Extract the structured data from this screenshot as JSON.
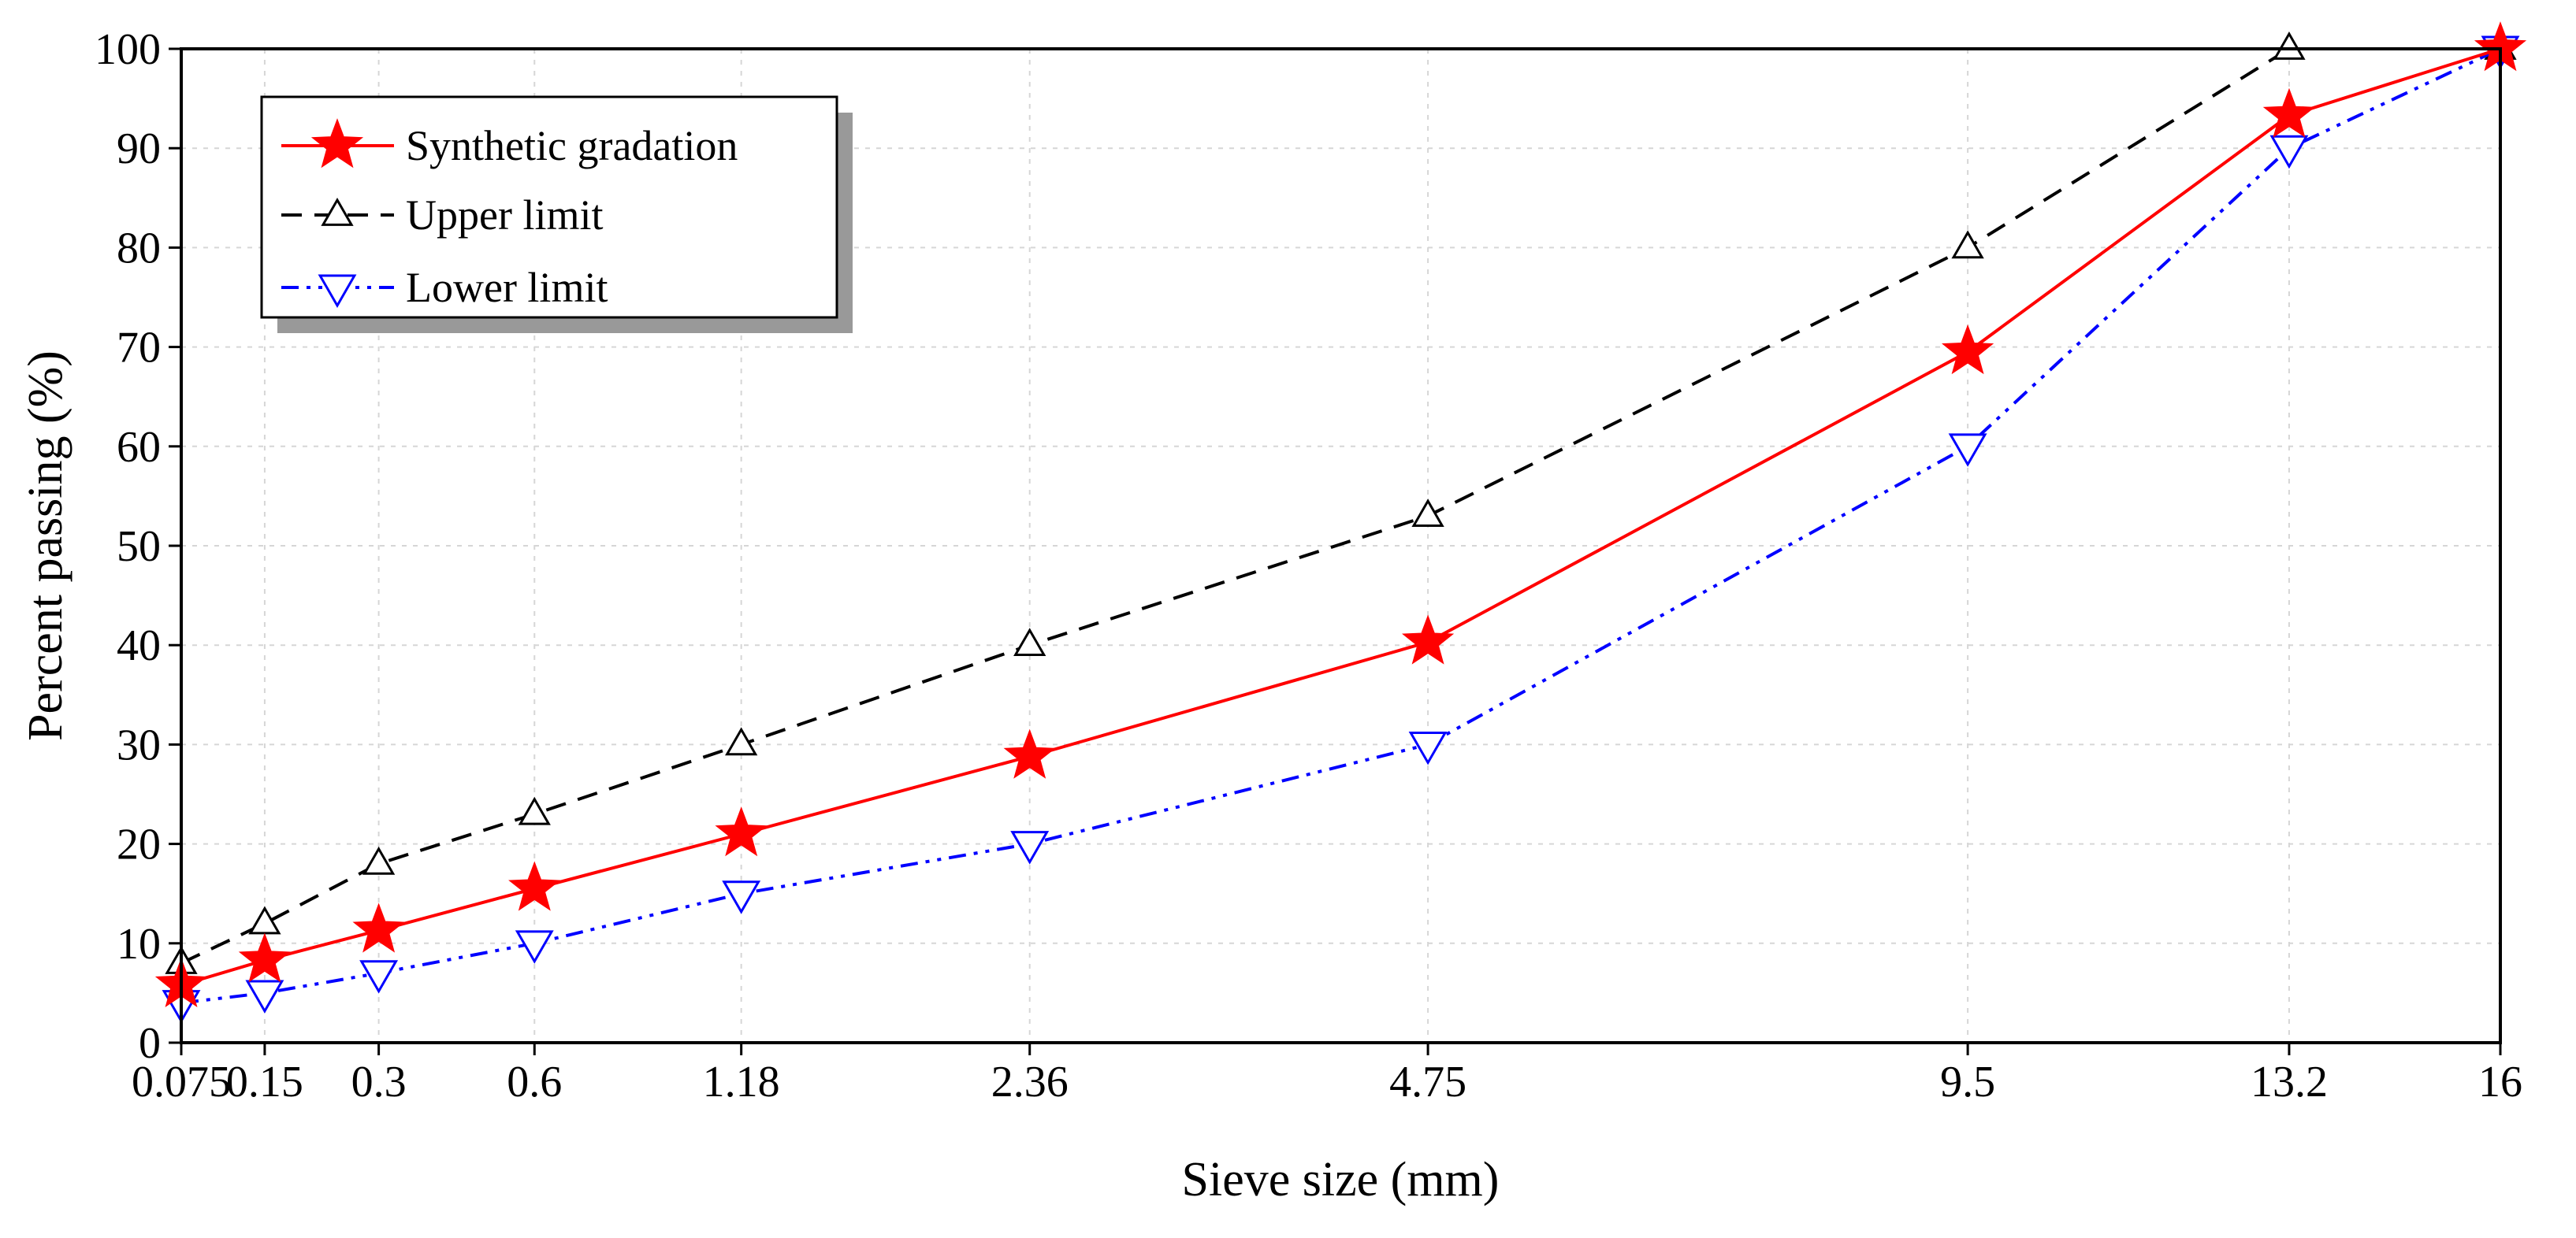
{
  "chart_data": {
    "type": "line",
    "title": "",
    "xlabel": "Sieve size (mm)",
    "ylabel": "Percent passing (%)",
    "x_scale": "power-0.45",
    "categories": [
      "0.075",
      "0.15",
      "0.3",
      "0.6",
      "1.18",
      "2.36",
      "4.75",
      "9.5",
      "13.2",
      "16"
    ],
    "x": [
      0.075,
      0.15,
      0.3,
      0.6,
      1.18,
      2.36,
      4.75,
      9.5,
      13.2,
      16
    ],
    "yticks": [
      0,
      10,
      20,
      30,
      40,
      50,
      60,
      70,
      80,
      90,
      100
    ],
    "yticklabels": [
      "0",
      "10",
      "20",
      "30",
      "40",
      "50",
      "60",
      "70",
      "80",
      "90",
      "100"
    ],
    "ylim": [
      0,
      100
    ],
    "grid": true,
    "legend_position": "top-left",
    "series": [
      {
        "name": "Synthetic gradation",
        "values": [
          5.8,
          8.3,
          11.3,
          15.5,
          21.0,
          28.8,
          40.3,
          69.5,
          93.3,
          100
        ],
        "color": "#ff0000",
        "dash": "solid",
        "marker": "star-filled"
      },
      {
        "name": "Upper limit",
        "values": [
          8,
          12,
          18,
          23,
          30,
          40,
          53,
          80,
          100,
          100
        ],
        "color": "#000000",
        "dash": "dashed",
        "marker": "triangle-up-open"
      },
      {
        "name": "Lower limit",
        "values": [
          4,
          5,
          7,
          10,
          15,
          20,
          30,
          60,
          90,
          100
        ],
        "color": "#0000ff",
        "dash": "dash-dot-dot",
        "marker": "triangle-down-open"
      }
    ]
  }
}
